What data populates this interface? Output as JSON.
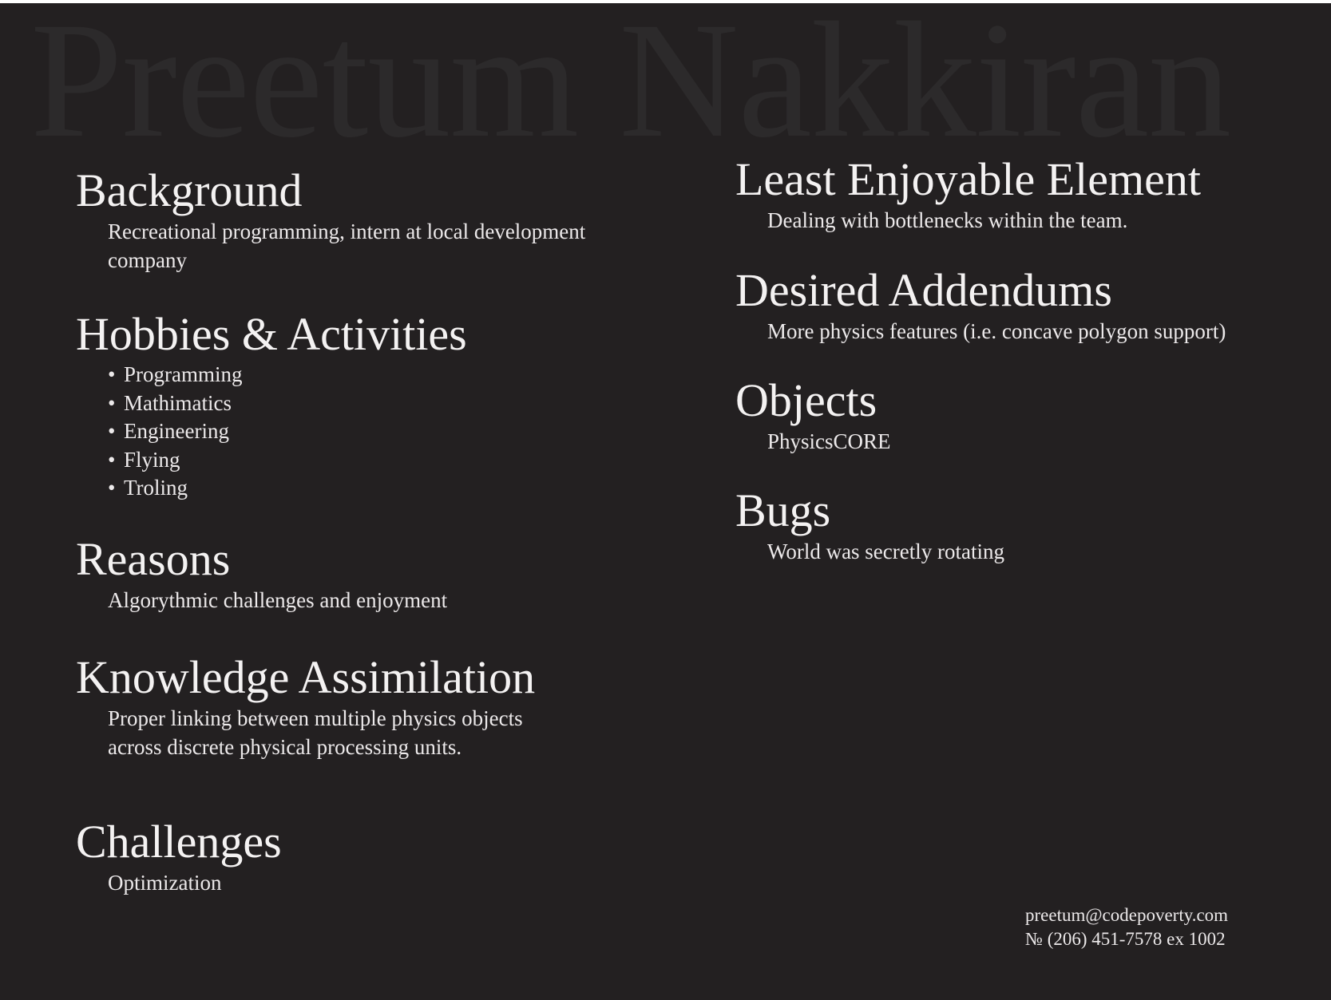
{
  "watermark": "Preetum Nakkiran",
  "left_column": {
    "background": {
      "heading": "Background",
      "lines": [
        "Recreational programming, intern at local development",
        "company"
      ]
    },
    "hobbies": {
      "heading": "Hobbies & Activities",
      "items": [
        "Programming",
        "Mathimatics",
        "Engineering",
        "Flying",
        "Troling"
      ]
    },
    "reasons": {
      "heading": "Reasons",
      "text": "Algorythmic challenges and enjoyment"
    },
    "knowledge": {
      "heading": "Knowledge Assimilation",
      "lines": [
        "Proper linking between multiple physics objects",
        "across discrete physical processing units."
      ]
    },
    "challenges": {
      "heading": "Challenges",
      "text": "Optimization"
    }
  },
  "right_column": {
    "least_enjoyable": {
      "heading": "Least Enjoyable Element",
      "text": "Dealing with bottlenecks within the team."
    },
    "desired_addendums": {
      "heading": "Desired Addendums",
      "text": "More physics features (i.e. concave polygon support)"
    },
    "objects": {
      "heading": "Objects",
      "text": "PhysicsCORE"
    },
    "bugs": {
      "heading": "Bugs",
      "text": "World was secretly rotating"
    }
  },
  "contact": {
    "email": "preetum@codepoverty.com",
    "phone": "№ (206) 451-7578 ex 1002"
  },
  "bullet_symbol": "•"
}
